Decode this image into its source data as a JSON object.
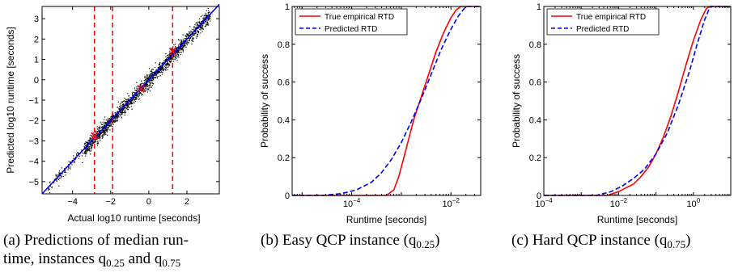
{
  "chart_data": [
    {
      "type": "scatter",
      "xlabel": "Actual log10 runtime [seconds]",
      "ylabel": "Predicted log10 runtime [seconds]",
      "xlim": [
        -5.6,
        3.7
      ],
      "ylim": [
        -5.6,
        3.6
      ],
      "xticks": [
        "−4",
        "−2",
        "0",
        "2"
      ],
      "xtick_values": [
        -4,
        -2,
        0,
        2
      ],
      "yticks": [
        "−5",
        "−4",
        "−3",
        "−2",
        "−1",
        "0",
        "1",
        "2",
        "3"
      ],
      "ytick_values": [
        -5,
        -4,
        -3,
        -2,
        -1,
        0,
        1,
        2,
        3
      ],
      "diagonal": [
        [
          -5.6,
          -5.6
        ],
        [
          3.7,
          3.7
        ]
      ],
      "vertical_dashed_x": [
        -2.85,
        -1.9,
        1.25
      ],
      "highlight_points": [
        [
          -2.85,
          -2.75
        ],
        [
          -0.4,
          -0.45
        ],
        [
          1.25,
          1.4
        ]
      ],
      "point_color": "#000000",
      "line_color": "#0000ff",
      "vline_color": "#ff0000"
    },
    {
      "type": "line",
      "xlabel": "Runtime [seconds]",
      "ylabel": "Probability of success",
      "xscale": "log",
      "xlim_log10": [
        -5.2,
        -1.4
      ],
      "ylim": [
        0,
        1
      ],
      "xticks": [
        {
          "exp": "-4",
          "v": -4
        },
        {
          "exp": "-2",
          "v": -2
        }
      ],
      "yticks": [
        "0",
        "0.2",
        "0.4",
        "0.6",
        "0.8",
        "1"
      ],
      "ytick_values": [
        0,
        0.2,
        0.4,
        0.6,
        0.8,
        1
      ],
      "legend": "top-left",
      "series": [
        {
          "name": "True empirical RTD",
          "color": "#ff0000",
          "style": "solid",
          "x_log10": [
            -5.2,
            -3.3,
            -3.15,
            -3.05,
            -2.95,
            -2.85,
            -2.75,
            -2.6,
            -2.45,
            -2.3,
            -2.15,
            -2.0,
            -1.9,
            -1.8,
            -1.4
          ],
          "y": [
            0,
            0,
            0.03,
            0.1,
            0.2,
            0.3,
            0.4,
            0.52,
            0.64,
            0.76,
            0.86,
            0.94,
            0.98,
            1.0,
            1.0
          ]
        },
        {
          "name": "Predicted RTD",
          "color": "#0000ff",
          "style": "dashed",
          "x_log10": [
            -5.2,
            -4.6,
            -4.2,
            -3.9,
            -3.6,
            -3.4,
            -3.2,
            -3.0,
            -2.8,
            -2.6,
            -2.4,
            -2.2,
            -2.0,
            -1.85,
            -1.7,
            -1.4
          ],
          "y": [
            0,
            0,
            0.01,
            0.03,
            0.07,
            0.12,
            0.19,
            0.28,
            0.39,
            0.51,
            0.64,
            0.77,
            0.88,
            0.95,
            1.0,
            1.0
          ]
        }
      ]
    },
    {
      "type": "line",
      "xlabel": "Runtime [seconds]",
      "ylabel": "Probability of success",
      "xscale": "log",
      "xlim_log10": [
        -4,
        1
      ],
      "ylim": [
        0,
        1
      ],
      "xticks": [
        {
          "exp": "-4",
          "v": -4
        },
        {
          "exp": "-2",
          "v": -2
        },
        {
          "exp": "0",
          "v": 0
        }
      ],
      "yticks": [
        "0",
        "0.2",
        "0.4",
        "0.6",
        "0.8",
        "1"
      ],
      "ytick_values": [
        0,
        0.2,
        0.4,
        0.6,
        0.8,
        1
      ],
      "legend": "top-left",
      "series": [
        {
          "name": "True empirical RTD",
          "color": "#ff0000",
          "style": "solid",
          "x_log10": [
            -4,
            -2.3,
            -2.0,
            -1.8,
            -1.6,
            -1.4,
            -1.2,
            -1.0,
            -0.8,
            -0.6,
            -0.4,
            -0.2,
            0,
            0.2,
            0.35,
            0.45,
            1
          ],
          "y": [
            0,
            0,
            0.02,
            0.04,
            0.06,
            0.1,
            0.15,
            0.22,
            0.31,
            0.42,
            0.55,
            0.69,
            0.82,
            0.93,
            0.99,
            1.0,
            1.0
          ]
        },
        {
          "name": "Predicted RTD",
          "color": "#0000ff",
          "style": "dashed",
          "x_log10": [
            -4,
            -2.6,
            -2.2,
            -1.9,
            -1.6,
            -1.3,
            -1.0,
            -0.7,
            -0.4,
            -0.1,
            0.1,
            0.3,
            0.45,
            1
          ],
          "y": [
            0,
            0,
            0.02,
            0.05,
            0.09,
            0.14,
            0.22,
            0.33,
            0.48,
            0.66,
            0.8,
            0.93,
            1.0,
            1.0
          ]
        }
      ]
    }
  ],
  "captions": {
    "a_line1": "(a) Predictions of median run-",
    "a_line2": "time, instances q",
    "a_sub1": "0.25",
    "a_and": " and q",
    "a_sub2": "0.75",
    "b_text": "(b) Easy QCP instance (q",
    "b_sub": "0.25",
    "b_close": ")",
    "c_text": "(c) Hard QCP instance (q",
    "c_sub": "0.75",
    "c_close": ")"
  }
}
